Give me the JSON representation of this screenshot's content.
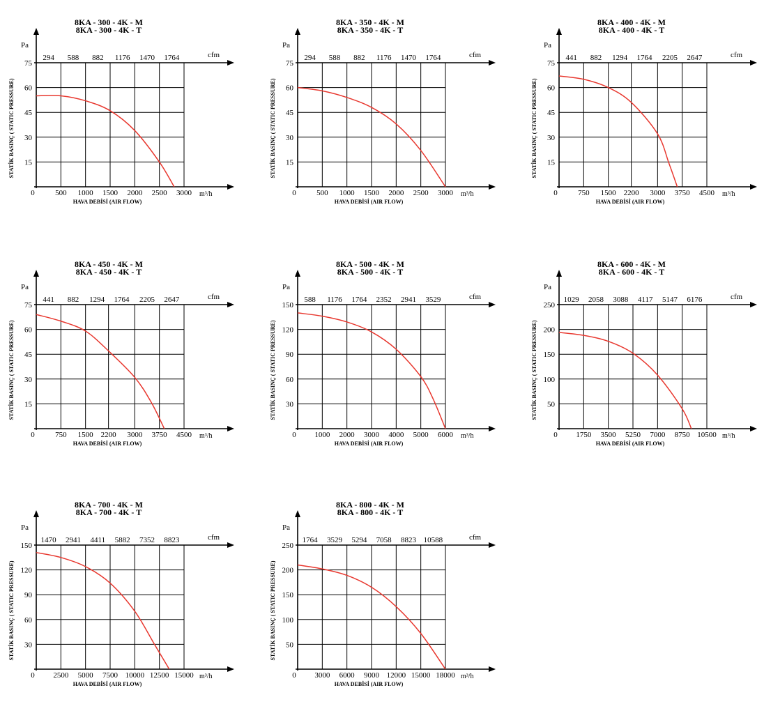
{
  "figure": {
    "curve_color": "#e8382f",
    "axis_color": "#000000",
    "background": "#ffffff"
  },
  "chart_data": [
    {
      "type": "line",
      "title_lines": [
        "8KA - 300 - 4K - M",
        "8KA - 300 - 4K - T"
      ],
      "y_unit": "Pa",
      "ylabel": "STATİK BASINÇ ( STATIC PRESSURE)",
      "xlabel": "HAVA DEBİSİ (AIR FLOW)",
      "x_unit": "m³/h",
      "top_unit": "cfm",
      "x_ticks": [
        "0",
        "500",
        "1000",
        "1500",
        "2000",
        "2500",
        "3000"
      ],
      "x_tick_values": [
        0,
        500,
        1000,
        1500,
        2000,
        2500,
        3000
      ],
      "top_ticks": [
        "294",
        "588",
        "882",
        "1176",
        "1470",
        "1764"
      ],
      "y_ticks": [
        "15",
        "30",
        "45",
        "60",
        "75"
      ],
      "y_tick_values": [
        15,
        30,
        45,
        60,
        75
      ],
      "xlim": [
        0,
        3000
      ],
      "ylim": [
        0,
        75
      ],
      "grid": true,
      "series": [
        {
          "x": [
            0,
            500,
            1000,
            1500,
            2000,
            2500,
            2800
          ],
          "y": [
            55,
            55,
            52,
            46,
            34,
            15,
            0
          ]
        }
      ]
    },
    {
      "type": "line",
      "title_lines": [
        "8KA - 350 - 4K - M",
        "8KA - 350 - 4K - T"
      ],
      "y_unit": "Pa",
      "ylabel": "STATİK BASINÇ ( STATIC PRESSURE)",
      "xlabel": "HAVA DEBİSİ (AIR FLOW)",
      "x_unit": "m³/h",
      "top_unit": "cfm",
      "x_ticks": [
        "0",
        "500",
        "1000",
        "1500",
        "2000",
        "2500",
        "3000"
      ],
      "x_tick_values": [
        0,
        500,
        1000,
        1500,
        2000,
        2500,
        3000
      ],
      "top_ticks": [
        "294",
        "588",
        "882",
        "1176",
        "1470",
        "1764"
      ],
      "y_ticks": [
        "15",
        "30",
        "45",
        "60",
        "75"
      ],
      "y_tick_values": [
        15,
        30,
        45,
        60,
        75
      ],
      "xlim": [
        0,
        3000
      ],
      "ylim": [
        0,
        75
      ],
      "grid": true,
      "series": [
        {
          "x": [
            0,
            500,
            1000,
            1500,
            2000,
            2500,
            3000
          ],
          "y": [
            60,
            58,
            54,
            48,
            38,
            22,
            0
          ]
        }
      ]
    },
    {
      "type": "line",
      "title_lines": [
        "8KA - 400 - 4K - M",
        "8KA - 400 - 4K - T"
      ],
      "y_unit": "Pa",
      "ylabel": "STATİK BASINÇ ( STATIC PRESSURE)",
      "xlabel": "HAVA DEBİSİ (AIR FLOW)",
      "x_unit": "m³/h",
      "top_unit": "cfm",
      "x_ticks": [
        "0",
        "750",
        "1500",
        "2200",
        "3000",
        "3750",
        "4500"
      ],
      "x_tick_values": [
        0,
        750,
        1500,
        2200,
        3000,
        3750,
        4500
      ],
      "top_ticks": [
        "441",
        "882",
        "1294",
        "1764",
        "2205",
        "2647"
      ],
      "y_ticks": [
        "15",
        "30",
        "45",
        "60",
        "75"
      ],
      "y_tick_values": [
        15,
        30,
        45,
        60,
        75
      ],
      "xlim": [
        0,
        4500
      ],
      "ylim": [
        0,
        75
      ],
      "grid": true,
      "series": [
        {
          "x": [
            0,
            750,
            1500,
            2200,
            3000,
            3350,
            3600
          ],
          "y": [
            67,
            65,
            60,
            51,
            32,
            14,
            0
          ]
        }
      ]
    },
    {
      "type": "line",
      "title_lines": [
        "8KA - 450 - 4K - M",
        "8KA - 450 - 4K - T"
      ],
      "y_unit": "Pa",
      "ylabel": "STATİK BASINÇ ( STATIC PRESSURE)",
      "xlabel": "HAVA DEBİSİ (AIR FLOW)",
      "x_unit": "m³/h",
      "top_unit": "cfm",
      "x_ticks": [
        "0",
        "750",
        "1500",
        "2200",
        "3000",
        "3750",
        "4500"
      ],
      "x_tick_values": [
        0,
        750,
        1500,
        2200,
        3000,
        3750,
        4500
      ],
      "top_ticks": [
        "441",
        "882",
        "1294",
        "1764",
        "2205",
        "2647"
      ],
      "y_ticks": [
        "15",
        "30",
        "45",
        "60",
        "75"
      ],
      "y_tick_values": [
        15,
        30,
        45,
        60,
        75
      ],
      "xlim": [
        0,
        4500
      ],
      "ylim": [
        0,
        75
      ],
      "grid": true,
      "series": [
        {
          "x": [
            0,
            750,
            1500,
            2200,
            3000,
            3500,
            3900
          ],
          "y": [
            69,
            65,
            59,
            47,
            31,
            16,
            0
          ]
        }
      ]
    },
    {
      "type": "line",
      "title_lines": [
        "8KA - 500 - 4K - M",
        "8KA - 500 - 4K - T"
      ],
      "y_unit": "Pa",
      "ylabel": "STATİK BASINÇ ( STATIC PRESSURE)",
      "xlabel": "HAVA DEBİSİ (AIR FLOW)",
      "x_unit": "m³/h",
      "top_unit": "cfm",
      "x_ticks": [
        "0",
        "1000",
        "2000",
        "3000",
        "4000",
        "5000",
        "6000"
      ],
      "x_tick_values": [
        0,
        1000,
        2000,
        3000,
        4000,
        5000,
        6000
      ],
      "top_ticks": [
        "588",
        "1176",
        "1764",
        "2352",
        "2941",
        "3529"
      ],
      "y_ticks": [
        "30",
        "60",
        "90",
        "120",
        "150"
      ],
      "y_tick_values": [
        30,
        60,
        90,
        120,
        150
      ],
      "xlim": [
        0,
        6000
      ],
      "ylim": [
        0,
        150
      ],
      "grid": true,
      "series": [
        {
          "x": [
            0,
            1000,
            2000,
            3000,
            4000,
            5000,
            5500,
            6000
          ],
          "y": [
            140,
            136,
            129,
            117,
            96,
            63,
            36,
            0
          ]
        }
      ]
    },
    {
      "type": "line",
      "title_lines": [
        "8KA - 600 - 4K - M",
        "8KA - 600 - 4K - T"
      ],
      "y_unit": "Pa",
      "ylabel": "STATİK BASINÇ ( STATIC PRESSURE)",
      "xlabel": "HAVA DEBİSİ (AIR FLOW)",
      "x_unit": "m³/h",
      "top_unit": "cfm",
      "x_ticks": [
        "0",
        "1750",
        "3500",
        "5250",
        "7000",
        "8750",
        "10500"
      ],
      "x_tick_values": [
        0,
        1750,
        3500,
        5250,
        7000,
        8750,
        10500
      ],
      "top_ticks": [
        "1029",
        "2058",
        "3088",
        "4117",
        "5147",
        "6176"
      ],
      "y_ticks": [
        "50",
        "100",
        "150",
        "200",
        "250"
      ],
      "y_tick_values": [
        50,
        100,
        150,
        200,
        250
      ],
      "xlim": [
        0,
        10500
      ],
      "ylim": [
        0,
        250
      ],
      "grid": true,
      "series": [
        {
          "x": [
            0,
            1750,
            3500,
            5250,
            7000,
            8750,
            9400
          ],
          "y": [
            194,
            188,
            176,
            152,
            108,
            40,
            0
          ]
        }
      ]
    },
    {
      "type": "line",
      "title_lines": [
        "8KA - 700 - 4K - M",
        "8KA - 700 - 4K - T"
      ],
      "y_unit": "Pa",
      "ylabel": "STATİK BASINÇ ( STATIC PRESSURE)",
      "xlabel": "HAVA DEBİSİ (AIR FLOW)",
      "x_unit": "m³/h",
      "top_unit": "cfm",
      "x_ticks": [
        "0",
        "2500",
        "5000",
        "7500",
        "10000",
        "12500",
        "15000"
      ],
      "x_tick_values": [
        0,
        2500,
        5000,
        7500,
        10000,
        12500,
        15000
      ],
      "top_ticks": [
        "1470",
        "2941",
        "4411",
        "5882",
        "7352",
        "8823"
      ],
      "y_ticks": [
        "30",
        "60",
        "90",
        "120",
        "150"
      ],
      "y_tick_values": [
        30,
        60,
        90,
        120,
        150
      ],
      "xlim": [
        0,
        15000
      ],
      "ylim": [
        0,
        150
      ],
      "grid": true,
      "series": [
        {
          "x": [
            0,
            2500,
            5000,
            7500,
            10000,
            12000,
            13500
          ],
          "y": [
            141,
            135,
            124,
            104,
            70,
            30,
            0
          ]
        }
      ]
    },
    {
      "type": "line",
      "title_lines": [
        "8KA - 800 - 4K - M",
        "8KA - 800 - 4K - T"
      ],
      "y_unit": "Pa",
      "ylabel": "STATİK BASINÇ ( STATIC PRESSURE)",
      "xlabel": "HAVA DEBİSİ (AIR FLOW)",
      "x_unit": "m³/h",
      "top_unit": "cfm",
      "x_ticks": [
        "0",
        "3000",
        "6000",
        "9000",
        "12000",
        "15000",
        "18000"
      ],
      "x_tick_values": [
        0,
        3000,
        6000,
        9000,
        12000,
        15000,
        18000
      ],
      "top_ticks": [
        "1764",
        "3529",
        "5294",
        "7058",
        "8823",
        "10588"
      ],
      "y_ticks": [
        "50",
        "100",
        "150",
        "200",
        "250"
      ],
      "y_tick_values": [
        50,
        100,
        150,
        200,
        250
      ],
      "xlim": [
        0,
        18000
      ],
      "ylim": [
        0,
        250
      ],
      "grid": true,
      "series": [
        {
          "x": [
            0,
            3000,
            6000,
            9000,
            12000,
            15000,
            18000
          ],
          "y": [
            210,
            202,
            189,
            165,
            126,
            72,
            0
          ]
        }
      ]
    }
  ]
}
